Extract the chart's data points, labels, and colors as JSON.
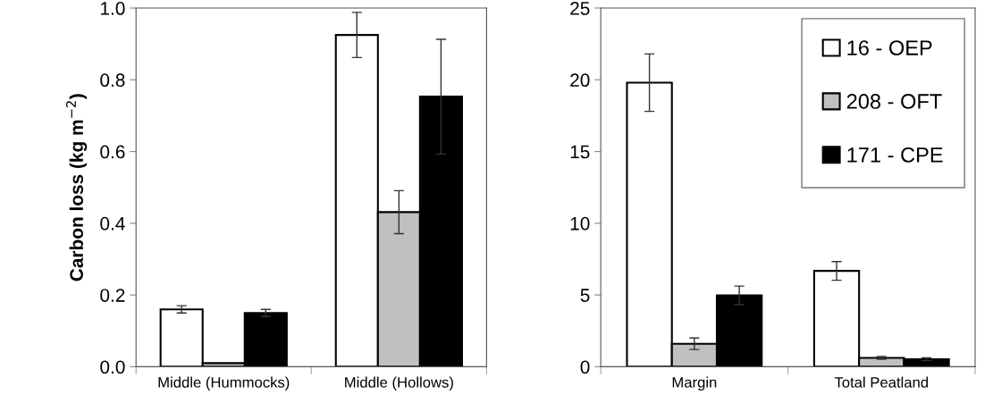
{
  "chart_data": [
    {
      "type": "bar",
      "ylabel": "Carbon loss (kg m$^{−2}$)",
      "categories": [
        "Middle (Hummocks)",
        "Middle (Hollows)"
      ],
      "ylim": [
        0,
        1.0
      ],
      "yticks": [
        {
          "value": 0,
          "label": "0.0"
        },
        {
          "value": 0.2,
          "label": "0.2"
        },
        {
          "value": 0.4,
          "label": "0.4"
        },
        {
          "value": 0.6,
          "label": "0.6"
        },
        {
          "value": 0.8,
          "label": "0.8"
        },
        {
          "value": 1.0,
          "label": "1.0"
        }
      ],
      "grid": false,
      "legend": false,
      "series": [
        {
          "color": "#ffffff",
          "values": [
            0.16,
            0.925
          ],
          "errors": [
            0.01,
            0.063
          ]
        },
        {
          "color": "#c0c0c0",
          "values": [
            0.01,
            0.431
          ],
          "errors": [
            null,
            0.06
          ]
        },
        {
          "color": "#000000",
          "values": [
            0.15,
            0.753
          ],
          "errors": [
            0.01,
            0.16
          ]
        }
      ]
    },
    {
      "type": "bar",
      "categories": [
        "Margin",
        "Total Peatland"
      ],
      "ylim": [
        0,
        25
      ],
      "yticks": [
        0,
        5,
        10,
        15,
        20,
        25
      ],
      "grid": false,
      "legend": "top right",
      "series": [
        {
          "name": "16 - OEP",
          "color": "#ffffff",
          "values": [
            19.8,
            6.68
          ],
          "errors": [
            2.0,
            0.65
          ]
        },
        {
          "name": "208 - OFT",
          "color": "#c0c0c0",
          "values": [
            1.6,
            0.62
          ],
          "errors": [
            0.4,
            0.1
          ]
        },
        {
          "name": "171 - CPE",
          "color": "#000000",
          "values": [
            4.97,
            0.52
          ],
          "errors": [
            0.65,
            0.1
          ]
        }
      ]
    }
  ]
}
